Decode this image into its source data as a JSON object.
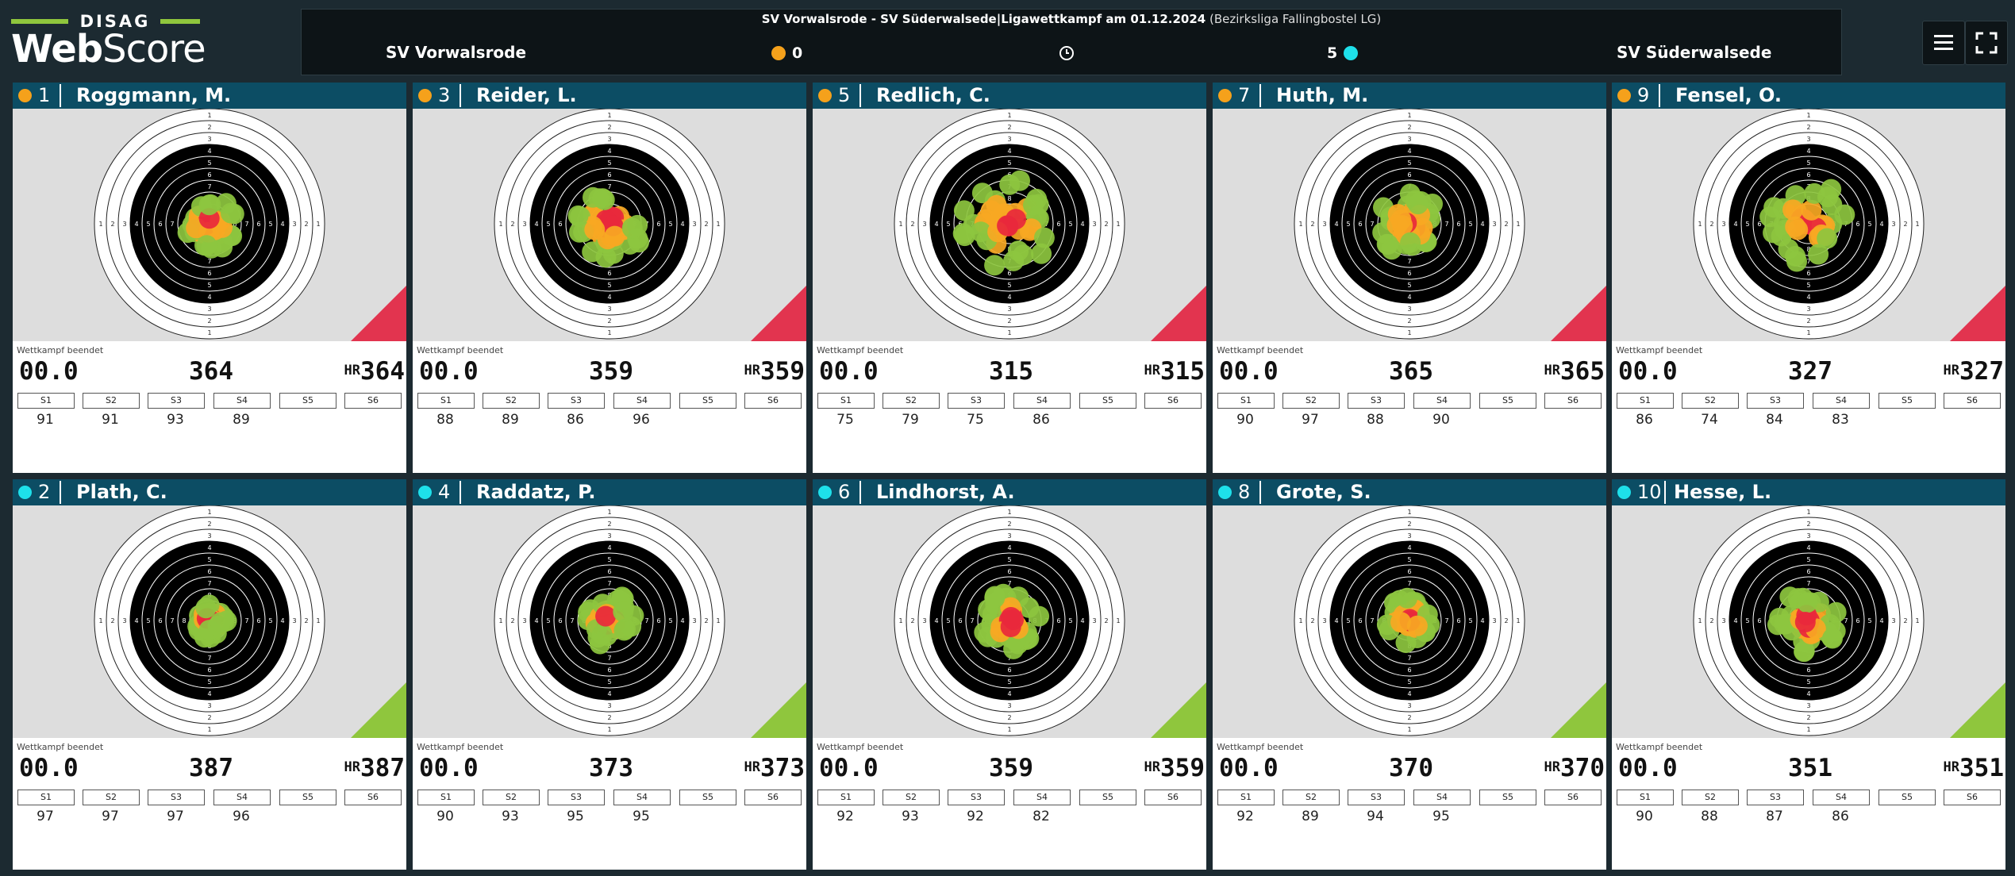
{
  "header": {
    "logo_top": "DISAG",
    "logo_web": "Web",
    "logo_score": "Score",
    "title_main": "SV Vorwalsrode - SV Süderwalsede|Ligawettkampf am 01.12.2024",
    "title_sub": "(Bezirksliga Fallingbostel LG)",
    "home_team": "SV Vorwalsrode",
    "home_points": "0",
    "away_points": "5",
    "away_team": "SV Süderwalsede",
    "menu_icon": "hamburger-menu-icon",
    "fullscreen_icon": "fullscreen-icon",
    "clock_icon": "clock-icon"
  },
  "colors": {
    "home": "#f5a11b",
    "away": "#1ee0ea",
    "header_bg": "#0c4d64",
    "loss_corner": "#e2344f",
    "win_corner": "#8fc63d"
  },
  "labels": {
    "status": "Wettkampf beendet",
    "decimal": "00.0",
    "hr": "HR",
    "series": [
      "S1",
      "S2",
      "S3",
      "S4",
      "S5",
      "S6"
    ]
  },
  "shooters": [
    {
      "num": "1",
      "name": "Roggmann, M.",
      "team": "home",
      "result": "loss",
      "total": "364",
      "hr": "364",
      "series": [
        "91",
        "91",
        "93",
        "89",
        "",
        ""
      ]
    },
    {
      "num": "3",
      "name": "Reider, L.",
      "team": "home",
      "result": "loss",
      "total": "359",
      "hr": "359",
      "series": [
        "88",
        "89",
        "86",
        "96",
        "",
        ""
      ]
    },
    {
      "num": "5",
      "name": "Redlich, C.",
      "team": "home",
      "result": "loss",
      "total": "315",
      "hr": "315",
      "series": [
        "75",
        "79",
        "75",
        "86",
        "",
        ""
      ]
    },
    {
      "num": "7",
      "name": "Huth, M.",
      "team": "home",
      "result": "loss",
      "total": "365",
      "hr": "365",
      "series": [
        "90",
        "97",
        "88",
        "90",
        "",
        ""
      ]
    },
    {
      "num": "9",
      "name": "Fensel, O.",
      "team": "home",
      "result": "loss",
      "total": "327",
      "hr": "327",
      "series": [
        "86",
        "74",
        "84",
        "83",
        "",
        ""
      ]
    },
    {
      "num": "2",
      "name": "Plath, C.",
      "team": "away",
      "result": "win",
      "total": "387",
      "hr": "387",
      "series": [
        "97",
        "97",
        "97",
        "96",
        "",
        ""
      ]
    },
    {
      "num": "4",
      "name": "Raddatz, P.",
      "team": "away",
      "result": "win",
      "total": "373",
      "hr": "373",
      "series": [
        "90",
        "93",
        "95",
        "95",
        "",
        ""
      ]
    },
    {
      "num": "6",
      "name": "Lindhorst, A.",
      "team": "away",
      "result": "win",
      "total": "359",
      "hr": "359",
      "series": [
        "92",
        "93",
        "92",
        "82",
        "",
        ""
      ]
    },
    {
      "num": "8",
      "name": "Grote, S.",
      "team": "away",
      "result": "win",
      "total": "370",
      "hr": "370",
      "series": [
        "92",
        "89",
        "94",
        "95",
        "",
        ""
      ]
    },
    {
      "num": "10",
      "name": "Hesse, L.",
      "team": "away",
      "result": "win",
      "total": "351",
      "hr": "351",
      "series": [
        "90",
        "88",
        "87",
        "86",
        "",
        ""
      ]
    }
  ]
}
